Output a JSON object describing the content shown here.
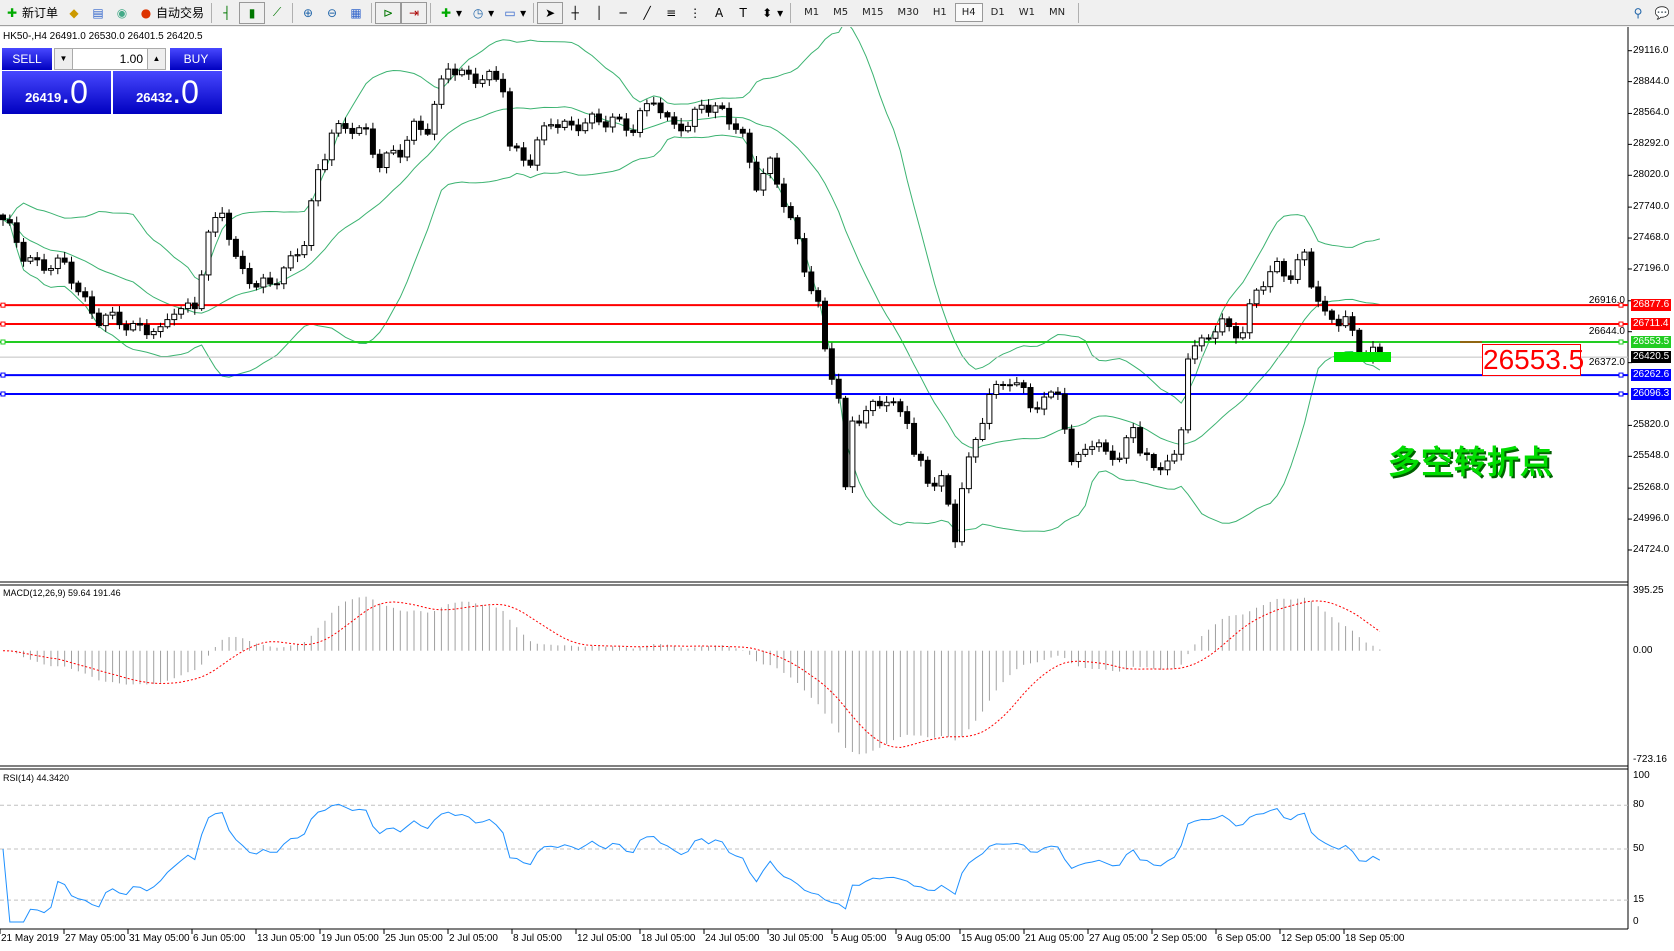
{
  "toolbar": {
    "new_order": "新订单",
    "auto_trading": "自动交易",
    "icons": [
      "new-order-icon",
      "history-icon",
      "market-watch-icon",
      "signals-icon",
      "auto-trading-icon",
      "bar-chart-icon",
      "candlestick-icon",
      "line-chart-icon",
      "zoom-in-icon",
      "zoom-out-icon",
      "tile-windows-icon",
      "auto-scroll-icon",
      "chart-shift-icon",
      "indicators-icon",
      "periods-icon",
      "templates-icon",
      "cursor-icon",
      "crosshair-icon",
      "vertical-line-icon",
      "horizontal-line-icon",
      "trendline-icon",
      "fibonacci-icon",
      "fibo-channel-icon",
      "text-icon",
      "text-label-icon",
      "arrows-icon"
    ],
    "timeframes": [
      "M1",
      "M5",
      "M15",
      "M30",
      "H1",
      "H4",
      "D1",
      "W1",
      "MN"
    ],
    "active_timeframe": "H4"
  },
  "chart": {
    "title": "HK50-,H4  26491.0 26530.0 26401.5 26420.5",
    "trade_panel": {
      "sell": "SELL",
      "buy": "BUY",
      "lots": "1.00",
      "sell_price_main": "26419",
      "sell_price_big": ".0",
      "buy_price_main": "26432",
      "buy_price_big": ".0"
    },
    "price_axis": [
      "29116.0",
      "28844.0",
      "28564.0",
      "28292.0",
      "28020.0",
      "27740.0",
      "27468.0",
      "27196.0",
      "26916.0",
      "26644.0",
      "26372.0",
      "25820.0",
      "25548.0",
      "25268.0",
      "24996.0",
      "24724.0"
    ],
    "levels": [
      {
        "value": "26877.6",
        "color": "#ff0000"
      },
      {
        "value": "26711.4",
        "color": "#ff0000"
      },
      {
        "value": "26553.5",
        "color": "#22cc22"
      },
      {
        "value": "26420.5",
        "color": "#000000"
      },
      {
        "value": "26262.6",
        "color": "#0000ff"
      },
      {
        "value": "26096.3",
        "color": "#0000ff"
      }
    ],
    "big_label": "26553.5",
    "annotation": "多空转折点",
    "macd": {
      "title": "MACD(12,26,9) 59.64 191.46",
      "axis": [
        "395.25",
        "0.00",
        "-723.16"
      ],
      "max": 395.25,
      "min": -723.16
    },
    "rsi": {
      "title": "RSI(14) 44.3420",
      "axis": [
        "100",
        "80",
        "50",
        "15",
        "0"
      ]
    },
    "dates": [
      "21 May 2019",
      "27 May 05:00",
      "31 May 05:00",
      "6 Jun 05:00",
      "13 Jun 05:00",
      "19 Jun 05:00",
      "25 Jun 05:00",
      "2 Jul 05:00",
      "8 Jul 05:00",
      "12 Jul 05:00",
      "18 Jul 05:00",
      "24 Jul 05:00",
      "30 Jul 05:00",
      "5 Aug 05:00",
      "9 Aug 05:00",
      "15 Aug 05:00",
      "21 Aug 05:00",
      "27 Aug 05:00",
      "2 Sep 05:00",
      "6 Sep 05:00",
      "12 Sep 05:00",
      "18 Sep 05:00"
    ]
  },
  "chart_data": {
    "type": "candlestick",
    "symbol": "HK50-",
    "timeframe": "H4",
    "ylim": [
      24724,
      29116
    ],
    "close_keypoints": [
      [
        0,
        27630
      ],
      [
        3,
        27300
      ],
      [
        9,
        27200
      ],
      [
        14,
        26750
      ],
      [
        20,
        26700
      ],
      [
        23,
        26600
      ],
      [
        25,
        26870
      ],
      [
        28,
        26870
      ],
      [
        30,
        27450
      ],
      [
        32,
        27750
      ],
      [
        34,
        27280
      ],
      [
        37,
        27000
      ],
      [
        41,
        27200
      ],
      [
        44,
        27400
      ],
      [
        46,
        28070
      ],
      [
        48,
        28420
      ],
      [
        53,
        28400
      ],
      [
        55,
        28150
      ],
      [
        58,
        28200
      ],
      [
        60,
        28460
      ],
      [
        62,
        28460
      ],
      [
        65,
        28950
      ],
      [
        69,
        28900
      ],
      [
        73,
        28800
      ],
      [
        74,
        28290
      ],
      [
        77,
        28150
      ],
      [
        80,
        28500
      ],
      [
        85,
        28450
      ],
      [
        89,
        28540
      ],
      [
        92,
        28400
      ],
      [
        95,
        28730
      ],
      [
        97,
        28500
      ],
      [
        100,
        28400
      ],
      [
        102,
        28690
      ],
      [
        105,
        28570
      ],
      [
        108,
        28330
      ],
      [
        110,
        27980
      ],
      [
        112,
        28110
      ],
      [
        114,
        27760
      ],
      [
        116,
        27450
      ],
      [
        119,
        26850
      ],
      [
        120,
        26450
      ],
      [
        122,
        26050
      ],
      [
        123,
        25250
      ],
      [
        124,
        25910
      ],
      [
        126,
        25910
      ],
      [
        129,
        26050
      ],
      [
        132,
        25910
      ],
      [
        133,
        25560
      ],
      [
        135,
        25290
      ],
      [
        137,
        25380
      ],
      [
        139,
        24850
      ],
      [
        140,
        25290
      ],
      [
        142,
        25640
      ],
      [
        144,
        26130
      ],
      [
        147,
        26220
      ],
      [
        150,
        26000
      ],
      [
        154,
        26130
      ],
      [
        156,
        25420
      ],
      [
        158,
        25690
      ],
      [
        161,
        25600
      ],
      [
        163,
        25470
      ],
      [
        165,
        25870
      ],
      [
        166,
        25640
      ],
      [
        168,
        25420
      ],
      [
        171,
        25510
      ],
      [
        172,
        25820
      ],
      [
        173,
        26490
      ],
      [
        175,
        26530
      ],
      [
        178,
        26710
      ],
      [
        181,
        26660
      ],
      [
        183,
        26980
      ],
      [
        186,
        27240
      ],
      [
        188,
        27160
      ],
      [
        190,
        27280
      ],
      [
        191,
        27060
      ],
      [
        193,
        26800
      ],
      [
        196,
        26750
      ],
      [
        197,
        26570
      ],
      [
        198,
        26430
      ],
      [
        200,
        26500
      ],
      [
        201,
        26420.5
      ]
    ],
    "indicators": [
      "Bollinger Bands(20)",
      "MACD(12,26,9)",
      "RSI(14)"
    ],
    "colors": {
      "bands": "#3cb371",
      "macd_hist": "#a0a0a0",
      "macd_signal": "#ff0000",
      "rsi": "#1e90ff"
    }
  }
}
